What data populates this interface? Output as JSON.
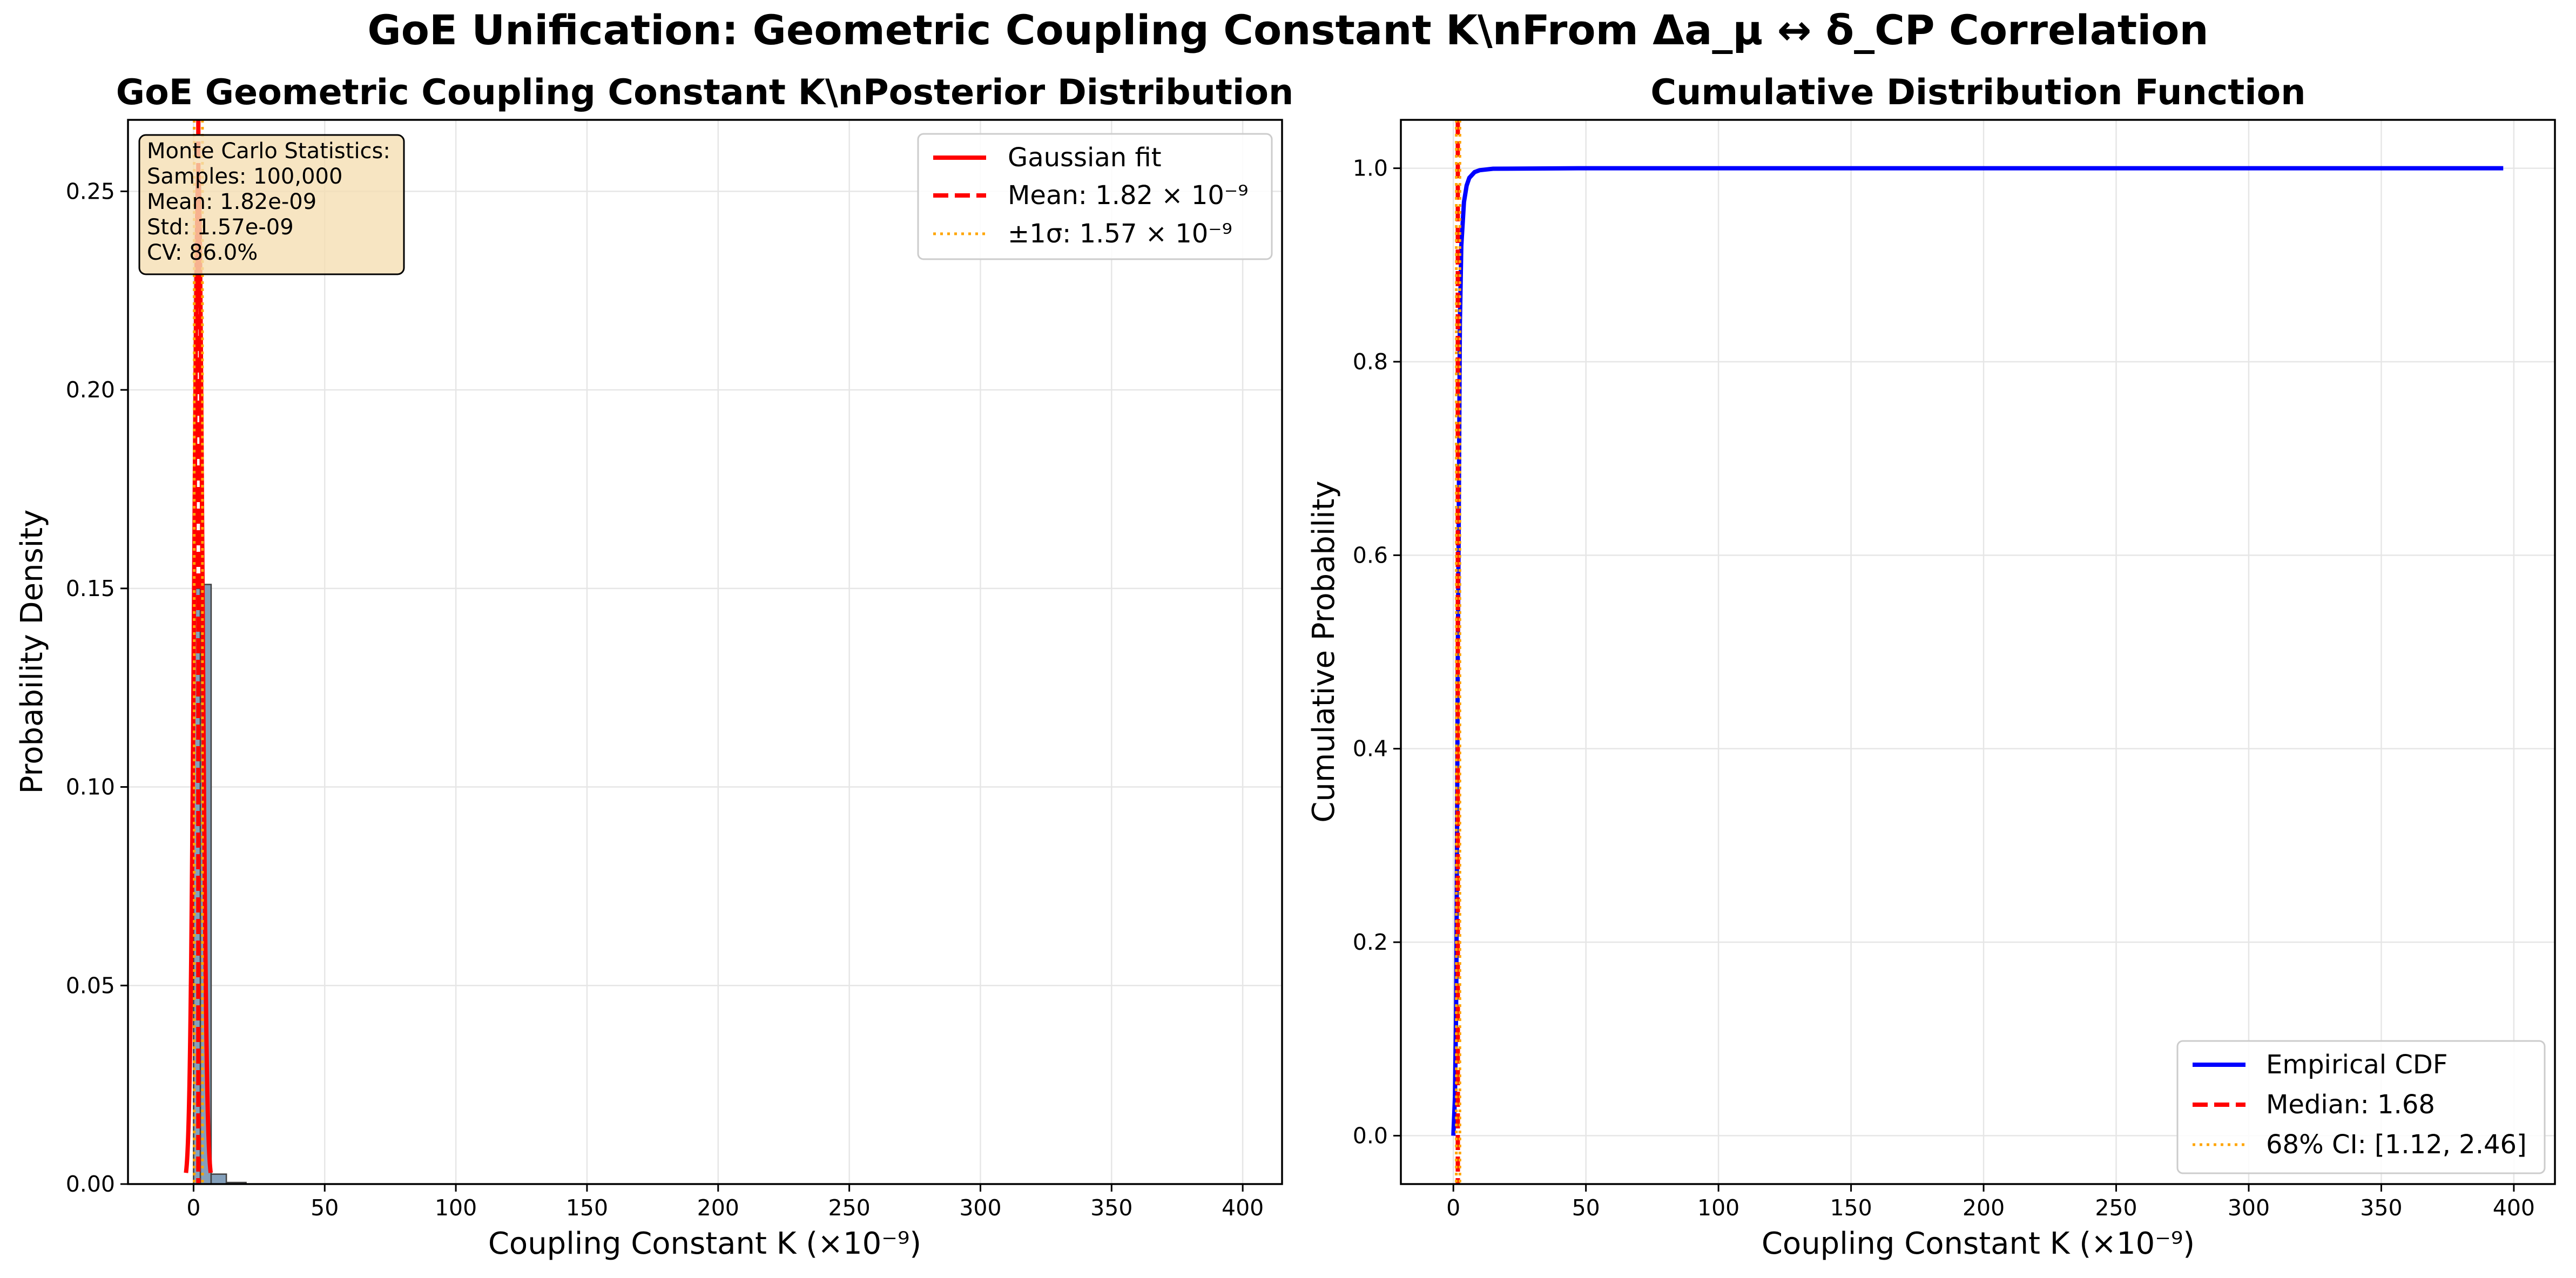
{
  "suptitle": "GoE Unification: Geometric Coupling Constant K\\nFrom Δa_μ ↔ δ_CP Correlation",
  "colors": {
    "hist_fill": "#6f8faf",
    "hist_edge": "#404040",
    "fit": "#ff0000",
    "mean_line": "#ff0000",
    "sigma_line": "#ffa500",
    "cdf": "#0000ff",
    "grid": "#e6e6e6",
    "stats_box_fill": "#f5deb3"
  },
  "chart_data": [
    {
      "type": "bar",
      "title": "GoE Geometric Coupling Constant K\\nPosterior Distribution",
      "xlabel": "Coupling Constant K (×10⁻⁹)",
      "ylabel": "Probability Density",
      "xlim": [
        -25,
        415
      ],
      "ylim": [
        0,
        0.268
      ],
      "xticks": [
        0,
        50,
        100,
        150,
        200,
        250,
        300,
        350,
        400
      ],
      "yticks": [
        0.0,
        0.05,
        0.1,
        0.15,
        0.2,
        0.25
      ],
      "xtick_labels": [
        "0",
        "50",
        "100",
        "150",
        "200",
        "250",
        "300",
        "350",
        "400"
      ],
      "ytick_labels": [
        "0.00",
        "0.05",
        "0.10",
        "0.15",
        "0.20",
        "0.25"
      ],
      "grid": true,
      "histogram": {
        "bins": [
          {
            "x0": 0,
            "x1": 2.6,
            "value": 0.15
          },
          {
            "x0": 2.6,
            "x1": 6.7,
            "value": 0.151
          },
          {
            "x0": 6.7,
            "x1": 12.5,
            "value": 0.0025
          },
          {
            "x0": 12.5,
            "x1": 20,
            "value": 0.0004
          }
        ]
      },
      "gaussian_fit": {
        "mean": 1.82,
        "std": 1.57
      },
      "mean_line": 1.82,
      "sigma_lines": [
        0.25,
        3.39
      ],
      "legend_position": "upper right",
      "legend": [
        {
          "label": "Gaussian fit",
          "style": "solid",
          "color": "#ff0000"
        },
        {
          "label": "Mean: 1.82 × 10⁻⁹",
          "style": "dashed",
          "color": "#ff0000"
        },
        {
          "label": "±1σ: 1.57 × 10⁻⁹",
          "style": "dotted",
          "color": "#ffa500"
        }
      ],
      "stats_box": {
        "lines": [
          "Monte Carlo Statistics:",
          "Samples: 100,000",
          "Mean: 1.82e-09",
          "Std: 1.57e-09",
          "CV: 86.0%"
        ]
      }
    },
    {
      "type": "line",
      "title": "Cumulative Distribution Function",
      "xlabel": "Coupling Constant K (×10⁻⁹)",
      "ylabel": "Cumulative Probability",
      "xlim": [
        -19.8,
        415.5
      ],
      "ylim": [
        -0.05,
        1.05
      ],
      "xticks": [
        0,
        50,
        100,
        150,
        200,
        250,
        300,
        350,
        400
      ],
      "yticks": [
        0.0,
        0.2,
        0.4,
        0.6,
        0.8,
        1.0
      ],
      "xtick_labels": [
        "0",
        "50",
        "100",
        "150",
        "200",
        "250",
        "300",
        "350",
        "400"
      ],
      "ytick_labels": [
        "0.0",
        "0.2",
        "0.4",
        "0.6",
        "0.8",
        "1.0"
      ],
      "grid": true,
      "series": [
        {
          "name": "Empirical CDF",
          "x": [
            0,
            0.6,
            1.0,
            1.12,
            1.4,
            1.68,
            2.0,
            2.46,
            3.0,
            4.0,
            5.0,
            6.0,
            8.0,
            10.0,
            15.0,
            50,
            100,
            200,
            300,
            396
          ],
          "y": [
            0.0,
            0.04,
            0.12,
            0.16,
            0.32,
            0.5,
            0.62,
            0.84,
            0.92,
            0.965,
            0.982,
            0.99,
            0.996,
            0.998,
            0.9995,
            1.0,
            1.0,
            1.0,
            1.0,
            1.0
          ]
        }
      ],
      "median_line": 1.68,
      "ci_lines": [
        1.12,
        2.46
      ],
      "legend_position": "lower right",
      "legend": [
        {
          "label": "Empirical CDF",
          "style": "solid",
          "color": "#0000ff"
        },
        {
          "label": "Median: 1.68",
          "style": "dashed",
          "color": "#ff0000"
        },
        {
          "label": "68% CI: [1.12, 2.46]",
          "style": "dotted",
          "color": "#ffa500"
        }
      ]
    }
  ]
}
